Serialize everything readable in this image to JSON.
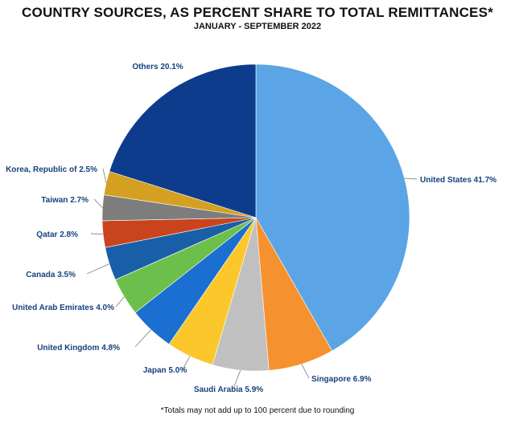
{
  "title": "COUNTRY SOURCES, AS PERCENT SHARE TO TOTAL REMITTANCES*",
  "subtitle": "JANUARY - SEPTEMBER 2022",
  "footnote": "*Totals may not add up to 100 percent due to rounding",
  "chart_data": {
    "type": "pie",
    "start": "12 o'clock, clockwise",
    "slices": [
      {
        "label": "United States 41.7%",
        "value": 41.7,
        "color": "#5ba4e5"
      },
      {
        "label": "Singapore 6.9%",
        "value": 6.9,
        "color": "#f5922f"
      },
      {
        "label": "Saudi Arabia 5.9%",
        "value": 5.9,
        "color": "#c0c0c0"
      },
      {
        "label": "Japan 5.0%",
        "value": 5.0,
        "color": "#fcc72a"
      },
      {
        "label": "United Kingdom 4.8%",
        "value": 4.8,
        "color": "#1a6fd0"
      },
      {
        "label": "United Arab Emirates 4.0%",
        "value": 4.0,
        "color": "#6dbf4b"
      },
      {
        "label": "Canada 3.5%",
        "value": 3.5,
        "color": "#185fa8"
      },
      {
        "label": "Qatar 2.8%",
        "value": 2.8,
        "color": "#c9441c"
      },
      {
        "label": "Taiwan 2.7%",
        "value": 2.7,
        "color": "#7d7d7d"
      },
      {
        "label": "Korea, Republic of 2.5%",
        "value": 2.5,
        "color": "#d5a021"
      },
      {
        "label": "Others 20.1%",
        "value": 20.1,
        "color": "#0d3c8c"
      }
    ],
    "label_color": "#17407d"
  }
}
